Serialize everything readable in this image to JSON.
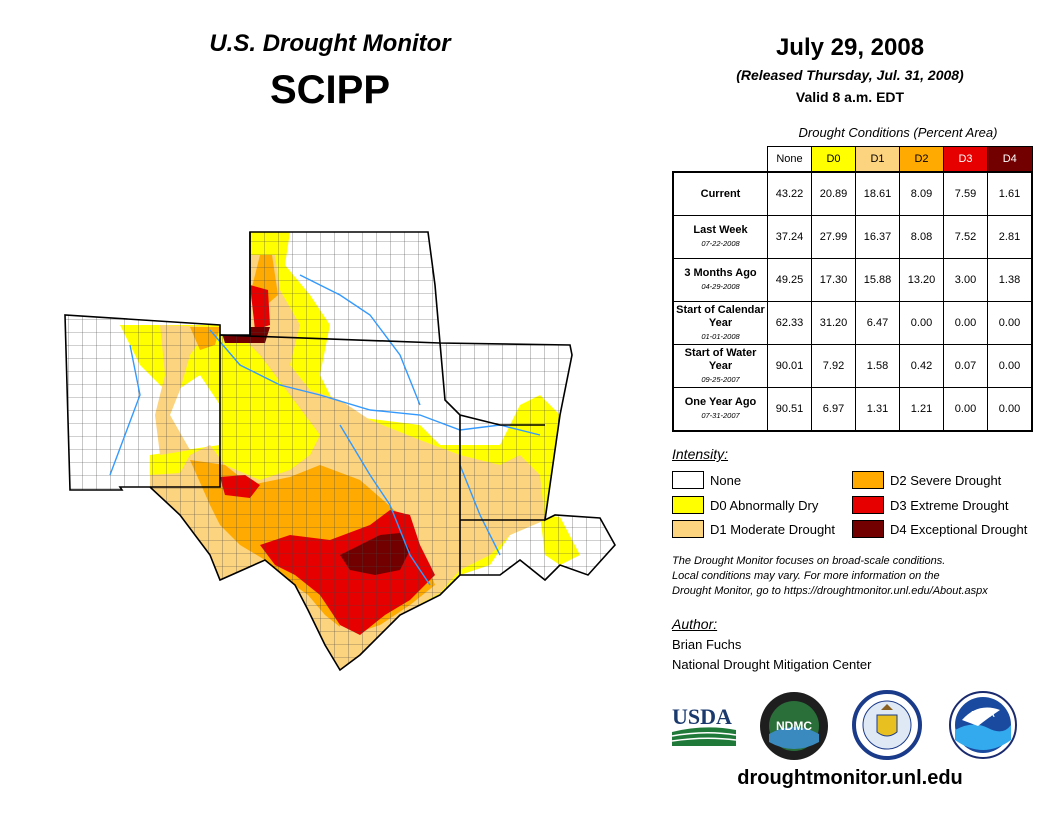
{
  "header": {
    "title": "U.S. Drought Monitor",
    "region": "SCIPP",
    "date": "July 29, 2008",
    "released": "(Released Thursday, Jul. 31, 2008)",
    "valid": "Valid 8 a.m. EDT"
  },
  "table": {
    "caption": "Drought Conditions (Percent Area)",
    "columns": [
      "None",
      "D0",
      "D1",
      "D2",
      "D3",
      "D4"
    ],
    "column_colors": [
      "#ffffff",
      "#ffff00",
      "#fcd37f",
      "#ffaa00",
      "#e60000",
      "#730000"
    ],
    "rows": [
      {
        "label": "Current",
        "date": "",
        "values": [
          "43.22",
          "20.89",
          "18.61",
          "8.09",
          "7.59",
          "1.61"
        ]
      },
      {
        "label": "Last Week",
        "date": "07-22-2008",
        "values": [
          "37.24",
          "27.99",
          "16.37",
          "8.08",
          "7.52",
          "2.81"
        ]
      },
      {
        "label": "3 Months Ago",
        "date": "04-29-2008",
        "values": [
          "49.25",
          "17.30",
          "15.88",
          "13.20",
          "3.00",
          "1.38"
        ]
      },
      {
        "label": "Start of Calendar Year",
        "date": "01-01-2008",
        "values": [
          "62.33",
          "31.20",
          "6.47",
          "0.00",
          "0.00",
          "0.00"
        ]
      },
      {
        "label": "Start of Water Year",
        "date": "09-25-2007",
        "values": [
          "90.01",
          "7.92",
          "1.58",
          "0.42",
          "0.07",
          "0.00"
        ]
      },
      {
        "label": "One Year Ago",
        "date": "07-31-2007",
        "values": [
          "90.51",
          "6.97",
          "1.31",
          "1.21",
          "0.00",
          "0.00"
        ]
      }
    ]
  },
  "legend": {
    "title": "Intensity:",
    "items": [
      {
        "label": "None",
        "color": "#ffffff"
      },
      {
        "label": "D0 Abnormally Dry",
        "color": "#ffff00"
      },
      {
        "label": "D1 Moderate Drought",
        "color": "#fcd37f"
      },
      {
        "label": "D2 Severe Drought",
        "color": "#ffaa00"
      },
      {
        "label": "D3 Extreme Drought",
        "color": "#e60000"
      },
      {
        "label": "D4 Exceptional Drought",
        "color": "#730000"
      }
    ]
  },
  "note": {
    "line1": "The Drought Monitor focuses on broad-scale conditions.",
    "line2": "Local conditions may vary. For more information on the",
    "line3": "Drought Monitor, go to https://droughtmonitor.unl.edu/About.aspx"
  },
  "author": {
    "label": "Author:",
    "name": "Brian Fuchs",
    "org": "National Drought Mitigation Center"
  },
  "logos": {
    "usda": "USDA",
    "ndmc": "NDMC",
    "noaa": "NOAA"
  },
  "footer": {
    "url": "droughtmonitor.unl.edu"
  }
}
